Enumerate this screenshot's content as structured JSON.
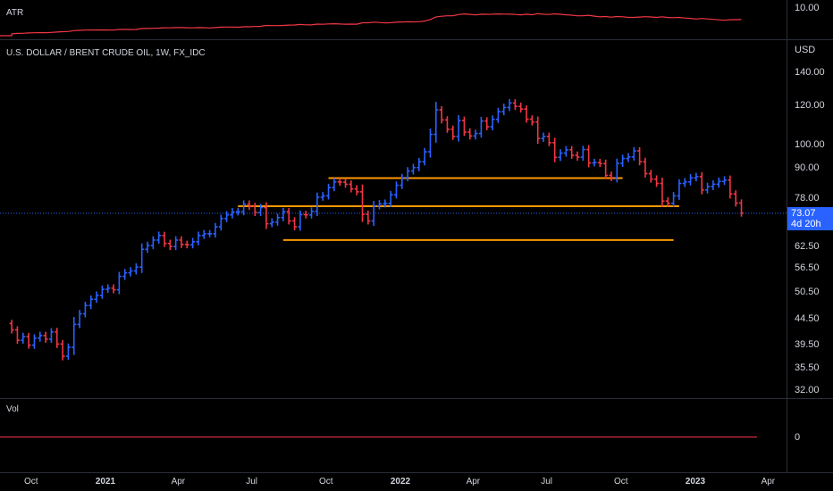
{
  "atr_pane": {
    "label": "ATR",
    "value_label": "10.00"
  },
  "main_pane": {
    "symbol_title": "U.S. DOLLAR / BRENT CRUDE OIL, 1W, FX_IDC",
    "currency": "USD",
    "last_price": "73.07",
    "countdown": "4d 20h"
  },
  "vol_pane": {
    "label": "Vol",
    "value_label": "0"
  },
  "x_axis": [
    {
      "label": "Oct",
      "year": false
    },
    {
      "label": "2021",
      "year": true
    },
    {
      "label": "Apr",
      "year": false
    },
    {
      "label": "Jul",
      "year": false
    },
    {
      "label": "Oct",
      "year": false
    },
    {
      "label": "2022",
      "year": true
    },
    {
      "label": "Apr",
      "year": false
    },
    {
      "label": "Jul",
      "year": false
    },
    {
      "label": "Oct",
      "year": false
    },
    {
      "label": "2023",
      "year": true
    },
    {
      "label": "Apr",
      "year": false
    }
  ],
  "colors": {
    "up": "#2962ff",
    "down": "#f23645",
    "level": "#ff9800",
    "atr": "#f23645",
    "background": "#000000"
  },
  "chart_data": {
    "type": "bar",
    "scale": "log",
    "title": "U.S. DOLLAR / BRENT CRUDE OIL, 1W, FX_IDC",
    "y_ticks": [
      "140.00",
      "120.00",
      "100.00",
      "90.00",
      "78.00",
      "62.50",
      "56.50",
      "50.50",
      "44.50",
      "39.50",
      "35.50",
      "32.00"
    ],
    "ylim": [
      30,
      150
    ],
    "horizontal_levels": [
      {
        "price": 86.0,
        "from": "2021-10-04",
        "to": "2022-10-03"
      },
      {
        "price": 75.5,
        "from": "2021-06-14",
        "to": "2022-12-12"
      },
      {
        "price": 64.5,
        "from": "2021-08-09",
        "to": "2022-12-05"
      }
    ],
    "weekly_closes_start": "2020-09-07",
    "weekly_closes": [
      42.5,
      40.5,
      41.2,
      39.6,
      40.9,
      41.4,
      40.7,
      42.1,
      39.8,
      37.6,
      39.2,
      43.6,
      45.8,
      47.6,
      49.0,
      49.9,
      51.3,
      51.6,
      51.2,
      54.5,
      55.4,
      55.9,
      56.9,
      61.8,
      62.9,
      64.5,
      65.9,
      63.5,
      62.6,
      64.5,
      63.2,
      63.1,
      64.0,
      65.9,
      66.4,
      66.4,
      68.6,
      71.3,
      72.5,
      73.5,
      73.6,
      76.2,
      75.4,
      73.3,
      75.0,
      69.6,
      70.1,
      71.6,
      73.6,
      70.5,
      68.6,
      72.6,
      72.5,
      73.7,
      78.7,
      79.2,
      82.3,
      84.5,
      84.4,
      83.6,
      81.8,
      80.7,
      72.7,
      70.5,
      75.6,
      76.3,
      76.5,
      79.6,
      83.2,
      86.2,
      88.9,
      90.3,
      92.8,
      97.2,
      105.4,
      118.1,
      112.7,
      107.9,
      104.4,
      112.4,
      106.5,
      104.6,
      105.8,
      112.1,
      109.2,
      113.0,
      117.1,
      119.4,
      121.9,
      120.0,
      118.5,
      113.1,
      111.6,
      103.4,
      104.4,
      101.4,
      94.7,
      96.6,
      98.1,
      95.6,
      94.8,
      98.2,
      92.3,
      92.4,
      92.0,
      87.1,
      86.2,
      92.1,
      94.2,
      94.9,
      97.6,
      92.8,
      87.8,
      85.6,
      83.9,
      77.3,
      76.5,
      79.2,
      83.9,
      84.5,
      86.1,
      86.6,
      81.4,
      82.7,
      83.6,
      84.7,
      85.2,
      79.9,
      76.6,
      73.1
    ],
    "last_price": 73.07,
    "atr_value_label": "10.00",
    "volume_value_label": "0"
  }
}
